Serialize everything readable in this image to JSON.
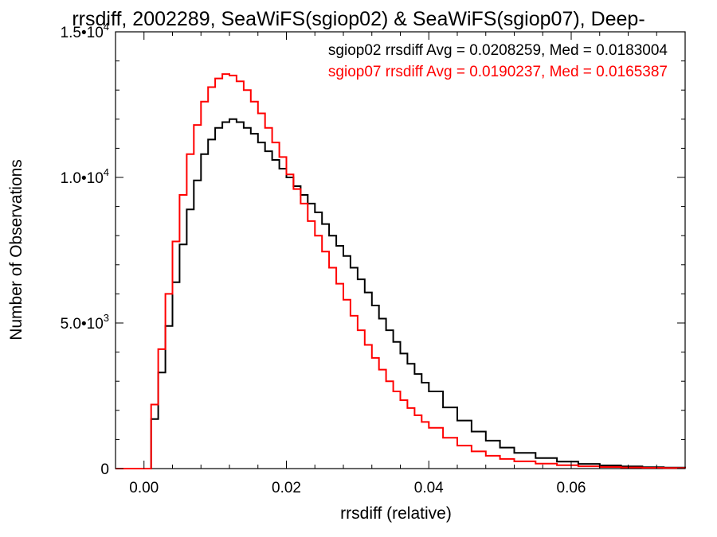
{
  "chart_data": {
    "type": "line",
    "title": "rrsdiff, 2002289, SeaWiFS(sgiop02) & SeaWiFS(sgiop07), Deep-",
    "xlabel": "rrsdiff (relative)",
    "ylabel": "Number of Observations",
    "xlim": [
      -0.004,
      0.076
    ],
    "ylim": [
      0,
      15000
    ],
    "x_ticks": [
      0.0,
      0.02,
      0.04,
      0.06
    ],
    "x_tick_labels": [
      "0.00",
      "0.02",
      "0.04",
      "0.06"
    ],
    "y_ticks": [
      0,
      5000,
      10000,
      15000
    ],
    "y_tick_labels": [
      {
        "mantissa": "0",
        "exponent": ""
      },
      {
        "mantissa": "5.0•10",
        "exponent": "3"
      },
      {
        "mantissa": "1.0•10",
        "exponent": "4"
      },
      {
        "mantissa": "1.5•10",
        "exponent": "4"
      }
    ],
    "step": true,
    "grid": false,
    "legend_position": "top-right",
    "series": [
      {
        "color": "#000000",
        "label": "sgiop02 rrsdiff Avg = 0.0208259, Med = 0.0183004",
        "x": [
          -0.004,
          0.0,
          0.001,
          0.002,
          0.003,
          0.004,
          0.005,
          0.006,
          0.007,
          0.008,
          0.009,
          0.01,
          0.011,
          0.012,
          0.013,
          0.014,
          0.015,
          0.016,
          0.017,
          0.018,
          0.019,
          0.02,
          0.021,
          0.022,
          0.023,
          0.024,
          0.025,
          0.026,
          0.027,
          0.028,
          0.029,
          0.03,
          0.031,
          0.032,
          0.033,
          0.034,
          0.035,
          0.036,
          0.037,
          0.038,
          0.039,
          0.04,
          0.042,
          0.044,
          0.046,
          0.048,
          0.05,
          0.052,
          0.055,
          0.058,
          0.061,
          0.064,
          0.067,
          0.07,
          0.073,
          0.076
        ],
        "y": [
          0,
          0,
          1700,
          3300,
          4900,
          6400,
          7700,
          8900,
          9900,
          10800,
          11300,
          11700,
          11900,
          12000,
          11900,
          11700,
          11500,
          11200,
          10900,
          10600,
          10300,
          10000,
          9700,
          9400,
          9100,
          8800,
          8400,
          8000,
          7650,
          7300,
          6900,
          6500,
          6050,
          5600,
          5150,
          4750,
          4350,
          3950,
          3600,
          3250,
          2950,
          2650,
          2100,
          1650,
          1270,
          960,
          720,
          540,
          360,
          240,
          160,
          110,
          75,
          50,
          35,
          25
        ]
      },
      {
        "color": "#ff0000",
        "label": "sgiop07 rrsdiff Avg = 0.0190237, Med = 0.0165387",
        "x": [
          -0.004,
          0.0,
          0.001,
          0.002,
          0.003,
          0.004,
          0.005,
          0.006,
          0.007,
          0.008,
          0.009,
          0.01,
          0.011,
          0.012,
          0.013,
          0.014,
          0.015,
          0.016,
          0.017,
          0.018,
          0.019,
          0.02,
          0.021,
          0.022,
          0.023,
          0.024,
          0.025,
          0.026,
          0.027,
          0.028,
          0.029,
          0.03,
          0.031,
          0.032,
          0.033,
          0.034,
          0.035,
          0.036,
          0.037,
          0.038,
          0.039,
          0.04,
          0.042,
          0.044,
          0.046,
          0.048,
          0.05,
          0.052,
          0.055,
          0.058,
          0.061,
          0.064,
          0.067,
          0.07,
          0.073,
          0.076
        ],
        "y": [
          0,
          0,
          2200,
          4100,
          6000,
          7800,
          9400,
          10800,
          11800,
          12600,
          13100,
          13400,
          13550,
          13500,
          13300,
          13000,
          12600,
          12200,
          11700,
          11200,
          10700,
          10100,
          9600,
          9100,
          8500,
          8000,
          7450,
          6900,
          6350,
          5800,
          5250,
          4750,
          4250,
          3800,
          3400,
          3000,
          2650,
          2350,
          2080,
          1830,
          1600,
          1400,
          1060,
          790,
          590,
          440,
          330,
          250,
          170,
          115,
          80,
          55,
          38,
          26,
          18,
          12
        ]
      }
    ]
  }
}
